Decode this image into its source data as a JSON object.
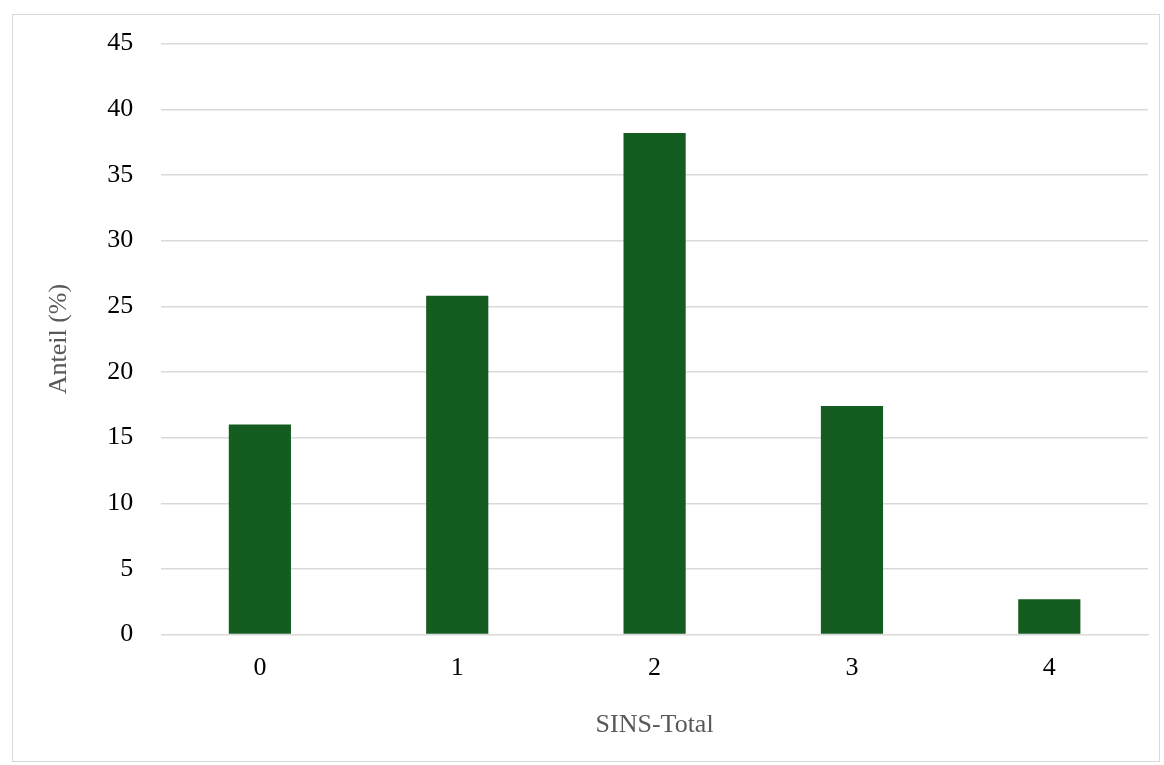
{
  "chart_data": {
    "type": "bar",
    "xlabel": "SINS-Total",
    "ylabel": "Anteil (%)",
    "categories": [
      "0",
      "1",
      "2",
      "3",
      "4"
    ],
    "values": [
      16.0,
      25.8,
      38.2,
      17.4,
      2.7
    ],
    "color": "#145c1f",
    "ylim": [
      0,
      45
    ],
    "yticks": [
      0,
      5,
      10,
      15,
      20,
      25,
      30,
      35,
      40,
      45
    ],
    "grid": "y",
    "legend": false
  }
}
